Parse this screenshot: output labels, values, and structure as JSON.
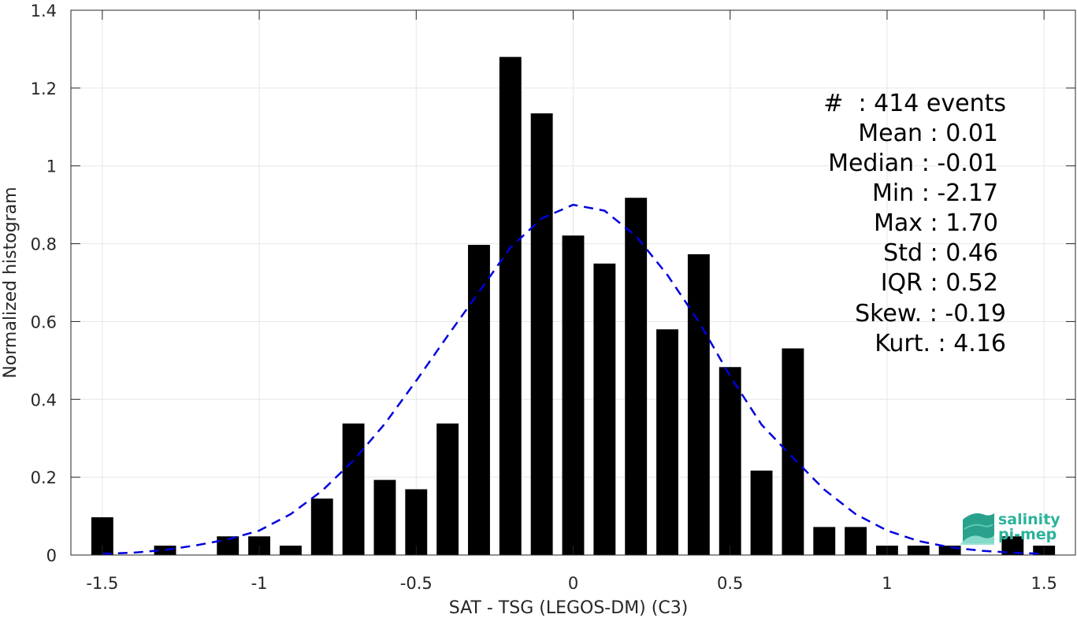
{
  "chart_data": {
    "type": "bar",
    "xlabel": "SAT - TSG (LEGOS-DM) (C3)",
    "ylabel": "Normalized histogram",
    "xlim": [
      -1.6,
      1.6
    ],
    "ylim": [
      0,
      1.4
    ],
    "xticks": [
      -1.5,
      -1,
      -0.5,
      0,
      0.5,
      1,
      1.5
    ],
    "xtick_labels": [
      "-1.5",
      "-1",
      "-0.5",
      "0",
      "0.5",
      "1",
      "1.5"
    ],
    "yticks": [
      0,
      0.2,
      0.4,
      0.6,
      0.8,
      1,
      1.2,
      1.4
    ],
    "ytick_labels": [
      "0",
      "0.2",
      "0.4",
      "0.6",
      "0.8",
      "1",
      "1.2",
      "1.4"
    ],
    "grid": true,
    "bin_width": 0.1,
    "bin_centers": [
      -1.5,
      -1.4,
      -1.3,
      -1.2,
      -1.1,
      -1.0,
      -0.9,
      -0.8,
      -0.7,
      -0.6,
      -0.5,
      -0.4,
      -0.3,
      -0.2,
      -0.1,
      0.0,
      0.1,
      0.2,
      0.3,
      0.4,
      0.5,
      0.6,
      0.7,
      0.8,
      0.9,
      1.0,
      1.1,
      1.2,
      1.3,
      1.4,
      1.5
    ],
    "values": [
      0.097,
      0,
      0.024,
      0,
      0.048,
      0.048,
      0.024,
      0.145,
      0.338,
      0.193,
      0.169,
      0.338,
      0.797,
      1.28,
      1.135,
      0.821,
      0.749,
      0.918,
      0.58,
      0.773,
      0.483,
      0.217,
      0.531,
      0.072,
      0.072,
      0.024,
      0.024,
      0.024,
      0,
      0.048,
      0.024
    ],
    "bar_color": "#000000",
    "fit_curve": {
      "style": "dashed",
      "color": "#0000dd",
      "x": [
        -1.5,
        -1.4,
        -1.3,
        -1.2,
        -1.1,
        -1.0,
        -0.9,
        -0.8,
        -0.7,
        -0.6,
        -0.5,
        -0.4,
        -0.3,
        -0.2,
        -0.1,
        0.0,
        0.1,
        0.2,
        0.3,
        0.4,
        0.5,
        0.6,
        0.7,
        0.8,
        0.9,
        1.0,
        1.1,
        1.2,
        1.3,
        1.4,
        1.5
      ],
      "y": [
        0.003,
        0.006,
        0.013,
        0.025,
        0.04,
        0.063,
        0.105,
        0.165,
        0.243,
        0.337,
        0.448,
        0.563,
        0.676,
        0.79,
        0.865,
        0.9,
        0.885,
        0.82,
        0.72,
        0.6,
        0.46,
        0.335,
        0.25,
        0.168,
        0.105,
        0.063,
        0.036,
        0.02,
        0.011,
        0.006,
        0.003
      ]
    },
    "annotations": [
      "#  : 414 events",
      "Mean : 0.01",
      "Median : -0.01",
      "Min : -2.17",
      "Max : 1.70",
      "Std : 0.46",
      "IQR : 0.52",
      "Skew. : -0.19",
      "Kurt. : 4.16"
    ],
    "logo": {
      "text": [
        "salinity",
        "pi-mep"
      ],
      "color": "#2bb39a"
    }
  }
}
